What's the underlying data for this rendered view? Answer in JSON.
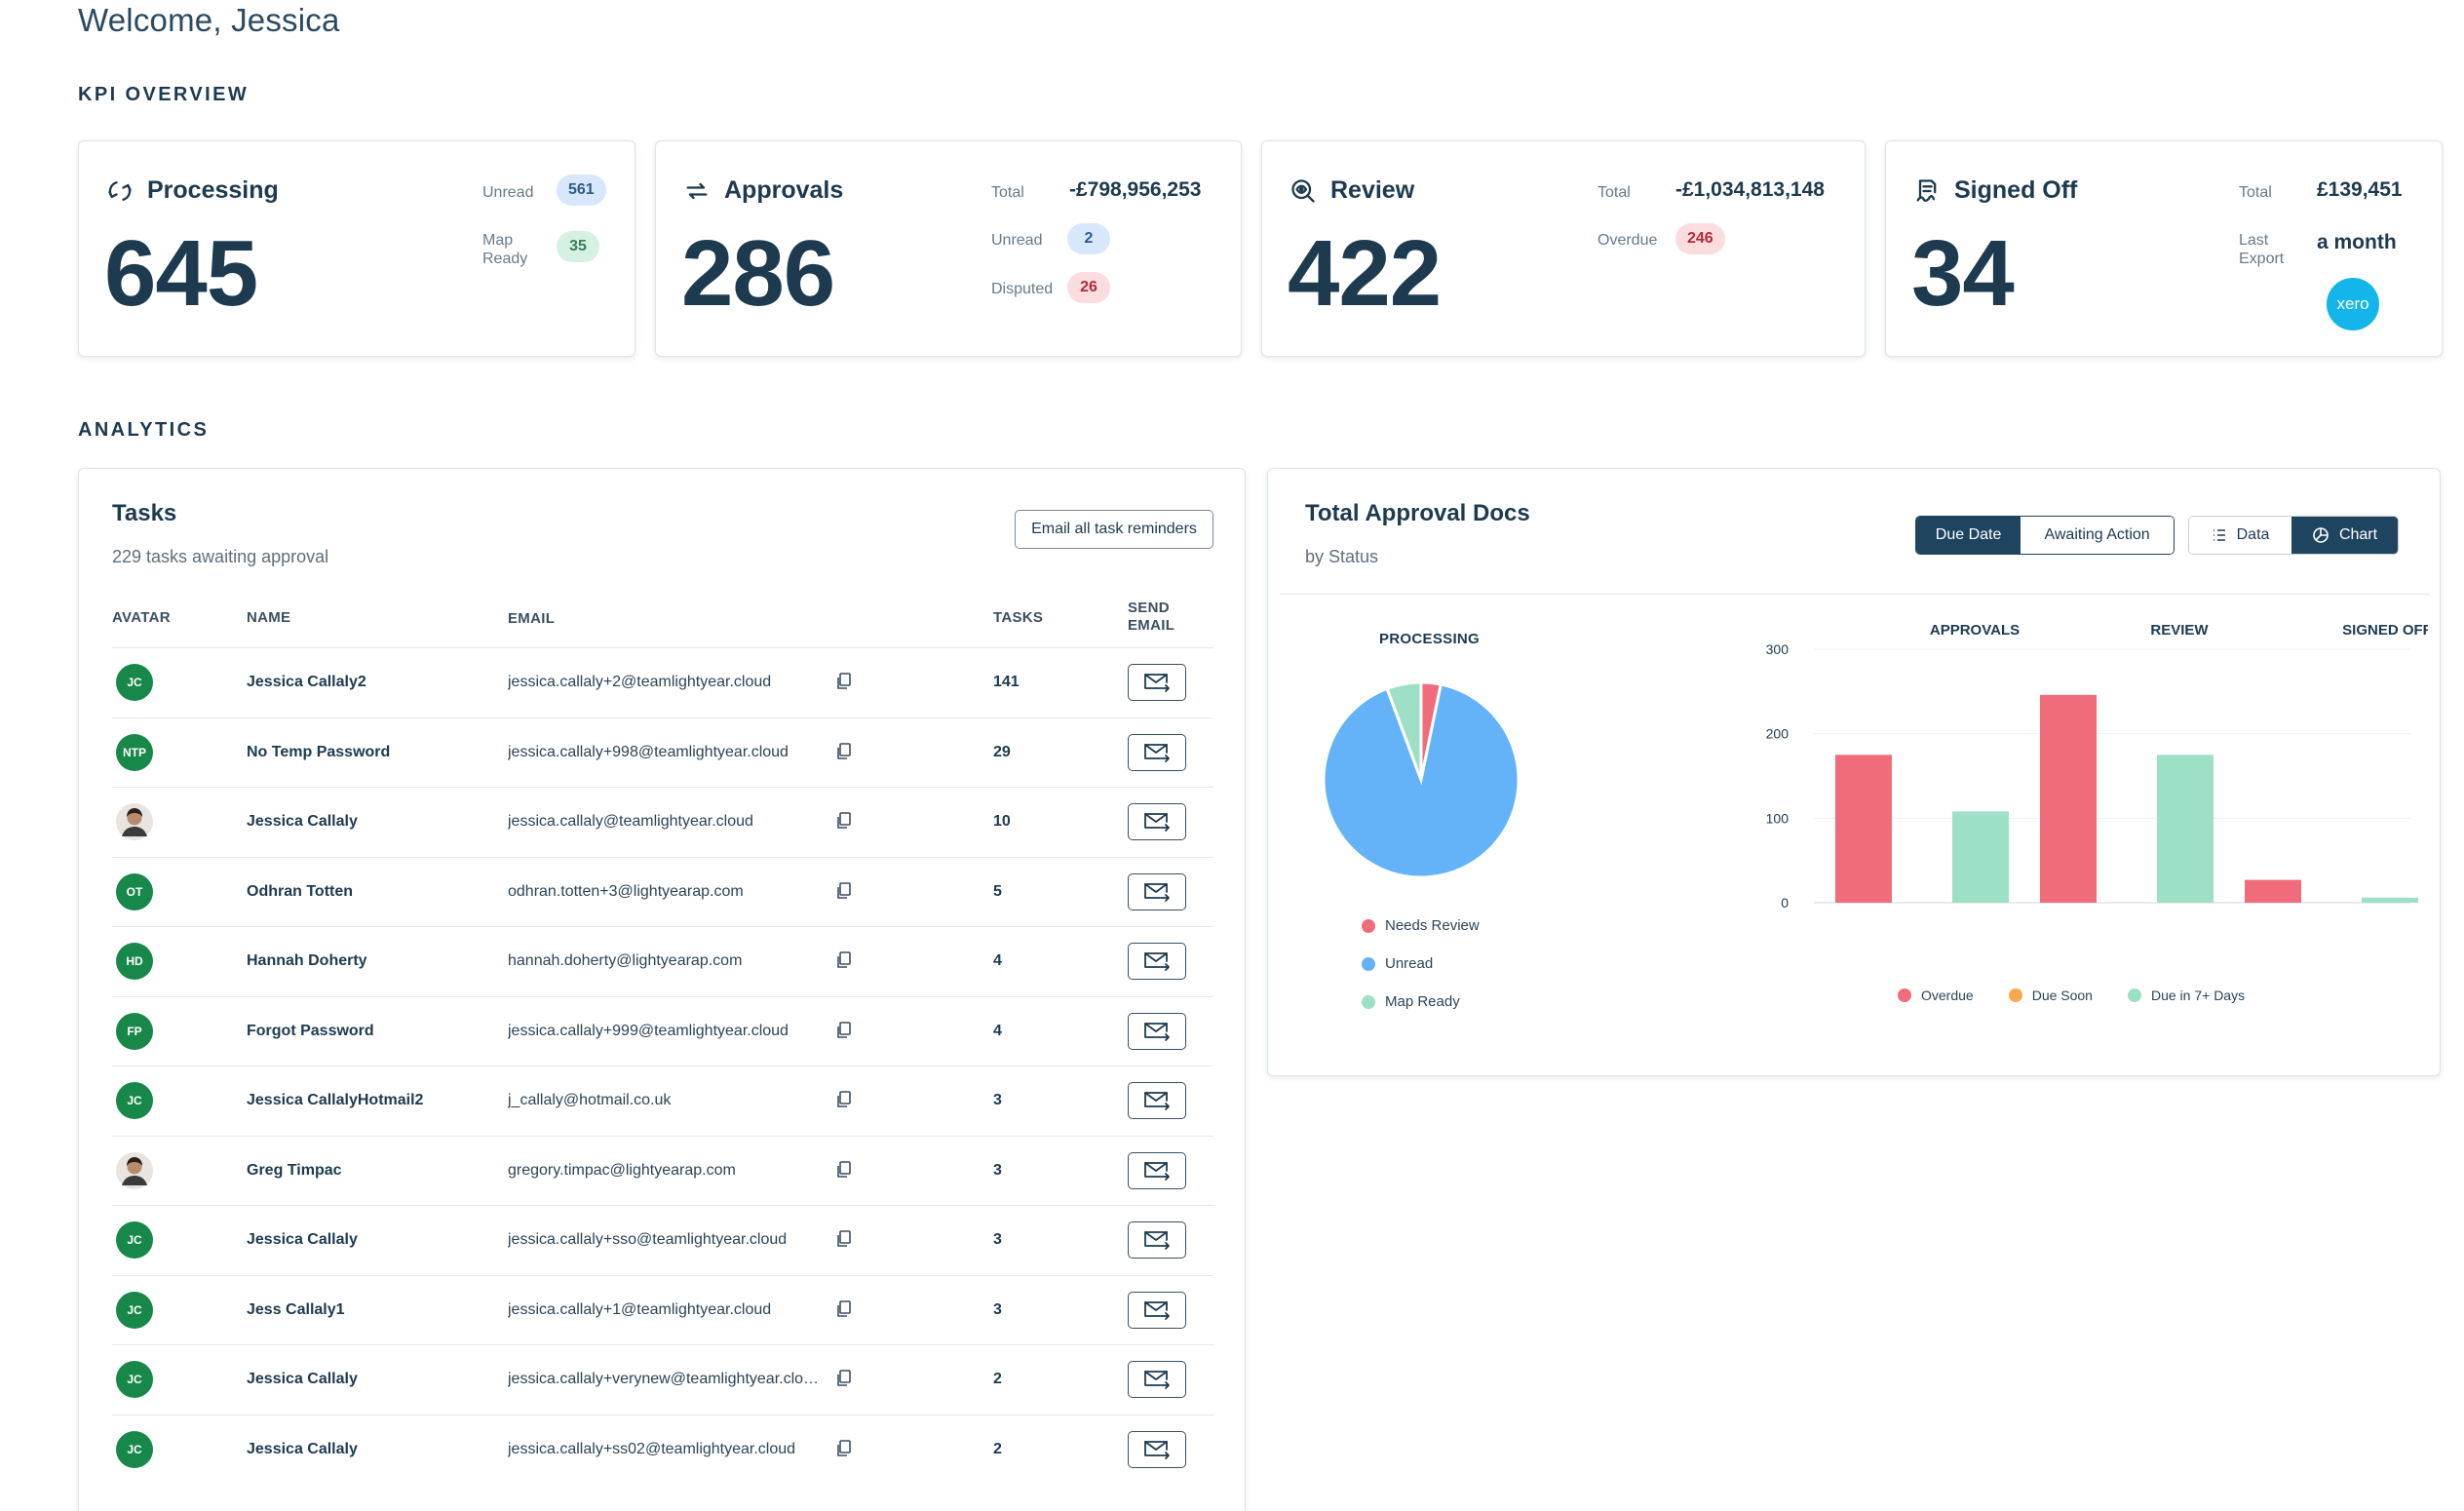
{
  "welcome": "Welcome, Jessica",
  "sections": {
    "kpi": "KPI OVERVIEW",
    "analytics": "ANALYTICS"
  },
  "kpis": {
    "processing": {
      "title": "Processing",
      "count": "645",
      "unread_label": "Unread",
      "unread": "561",
      "map_ready_label": "Map Ready",
      "map_ready": "35"
    },
    "approvals": {
      "title": "Approvals",
      "count": "286",
      "total_label": "Total",
      "total": "-£798,956,253",
      "unread_label": "Unread",
      "unread": "2",
      "disputed_label": "Disputed",
      "disputed": "26"
    },
    "review": {
      "title": "Review",
      "count": "422",
      "total_label": "Total",
      "total": "-£1,034,813,148",
      "overdue_label": "Overdue",
      "overdue": "246"
    },
    "signed_off": {
      "title": "Signed Off",
      "count": "34",
      "total_label": "Total",
      "total": "£139,451",
      "last_export_label": "Last Export",
      "last_export": "a month",
      "xero_logo": "xero"
    }
  },
  "tasks": {
    "title": "Tasks",
    "subtitle": "229 tasks awaiting approval",
    "email_all": "Email all task reminders",
    "columns": {
      "avatar": "AVATAR",
      "name": "NAME",
      "email": "EMAIL",
      "tasks": "TASKS",
      "send": "SEND EMAIL"
    },
    "rows": [
      {
        "initials": "JC",
        "name": "Jessica Callaly2",
        "email": "jessica.callaly+2@teamlightyear.cloud",
        "tasks": "141"
      },
      {
        "initials": "NTP",
        "name": "No Temp Password",
        "email": "jessica.callaly+998@teamlightyear.cloud",
        "tasks": "29"
      },
      {
        "initials": "",
        "name": "Jessica Callaly",
        "email": "jessica.callaly@teamlightyear.cloud",
        "tasks": "10"
      },
      {
        "initials": "OT",
        "name": "Odhran Totten",
        "email": "odhran.totten+3@lightyearap.com",
        "tasks": "5"
      },
      {
        "initials": "HD",
        "name": "Hannah Doherty",
        "email": "hannah.doherty@lightyearap.com",
        "tasks": "4"
      },
      {
        "initials": "FP",
        "name": "Forgot Password",
        "email": "jessica.callaly+999@teamlightyear.cloud",
        "tasks": "4"
      },
      {
        "initials": "JC",
        "name": "Jessica CallalyHotmail2",
        "email": "j_callaly@hotmail.co.uk",
        "tasks": "3"
      },
      {
        "initials": "",
        "name": "Greg Timpac",
        "email": "gregory.timpac@lightyearap.com",
        "tasks": "3"
      },
      {
        "initials": "JC",
        "name": "Jessica Callaly",
        "email": "jessica.callaly+sso@teamlightyear.cloud",
        "tasks": "3"
      },
      {
        "initials": "JC",
        "name": "Jess Callaly1",
        "email": "jessica.callaly+1@teamlightyear.cloud",
        "tasks": "3"
      },
      {
        "initials": "JC",
        "name": "Jessica Callaly",
        "email": "jessica.callaly+verynew@teamlightyear.cloud",
        "tasks": "2"
      },
      {
        "initials": "JC",
        "name": "Jessica Callaly",
        "email": "jessica.callaly+ss02@teamlightyear.cloud",
        "tasks": "2"
      }
    ]
  },
  "approval_docs": {
    "title": "Total Approval Docs",
    "subtitle": "by Status",
    "toggle_group": [
      "Due Date",
      "Awaiting Action"
    ],
    "toggle_active": "Due Date",
    "view_group": [
      "Data",
      "Chart"
    ],
    "view_active": "Chart"
  },
  "chart_data": [
    {
      "type": "pie",
      "title": "PROCESSING",
      "slices": [
        {
          "name": "Needs Review",
          "value": 20,
          "color": "#f06c7b"
        },
        {
          "name": "Unread",
          "value": 561,
          "color": "#64b2f7"
        },
        {
          "name": "Map Ready",
          "value": 35,
          "color": "#9ee0c5"
        }
      ]
    },
    {
      "type": "bar",
      "group_labels": [
        "APPROVALS",
        "REVIEW",
        "SIGNED OFF"
      ],
      "ylim": [
        0,
        300
      ],
      "yticks": [
        "0",
        "100",
        "200",
        "300"
      ],
      "grid": true,
      "legend": [
        {
          "name": "Overdue",
          "color": "#f06c7b"
        },
        {
          "name": "Due Soon",
          "color": "#f7a94f"
        },
        {
          "name": "Due in 7+ Days",
          "color": "#9ee0c5"
        }
      ],
      "bars": [
        {
          "group": "APPROVALS",
          "series": "Overdue",
          "value": 175,
          "color": "#f06c7b"
        },
        {
          "group": "APPROVALS",
          "series": "Due in 7+ Days",
          "value": 108,
          "color": "#9ee0c5"
        },
        {
          "group": "REVIEW",
          "series": "Overdue",
          "value": 246,
          "color": "#f06c7b"
        },
        {
          "group": "REVIEW",
          "series": "Due in 7+ Days",
          "value": 175,
          "color": "#9ee0c5"
        },
        {
          "group": "SIGNED OFF",
          "series": "Overdue",
          "value": 27,
          "color": "#f06c7b"
        },
        {
          "group": "SIGNED OFF",
          "series": "Due in 7+ Days",
          "value": 6,
          "color": "#9ee0c5"
        }
      ]
    }
  ]
}
